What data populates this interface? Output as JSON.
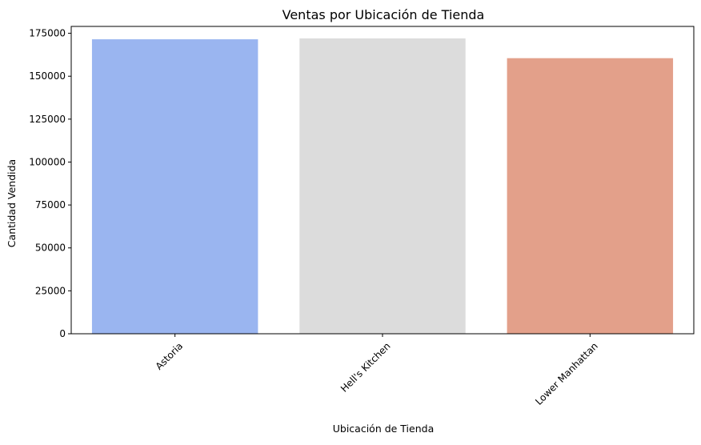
{
  "chart_data": {
    "type": "bar",
    "title": "Ventas por Ubicación de Tienda",
    "xlabel": "Ubicación de Tienda",
    "ylabel": "Cantidad Vendida",
    "categories": [
      "Astoria",
      "Hell's Kitchen",
      "Lower Manhattan"
    ],
    "values": [
      171500,
      172000,
      160500
    ],
    "bar_colors": [
      "#9ab5f0",
      "#dcdcdc",
      "#e3a08a"
    ],
    "ylim": [
      0,
      179000
    ],
    "yticks": [
      0,
      25000,
      50000,
      75000,
      100000,
      125000,
      150000,
      175000
    ],
    "ytick_labels": [
      "0",
      "25000",
      "50000",
      "75000",
      "100000",
      "125000",
      "150000",
      "175000"
    ],
    "xtick_rotation_deg": 45,
    "grid": false,
    "legend": "none"
  }
}
